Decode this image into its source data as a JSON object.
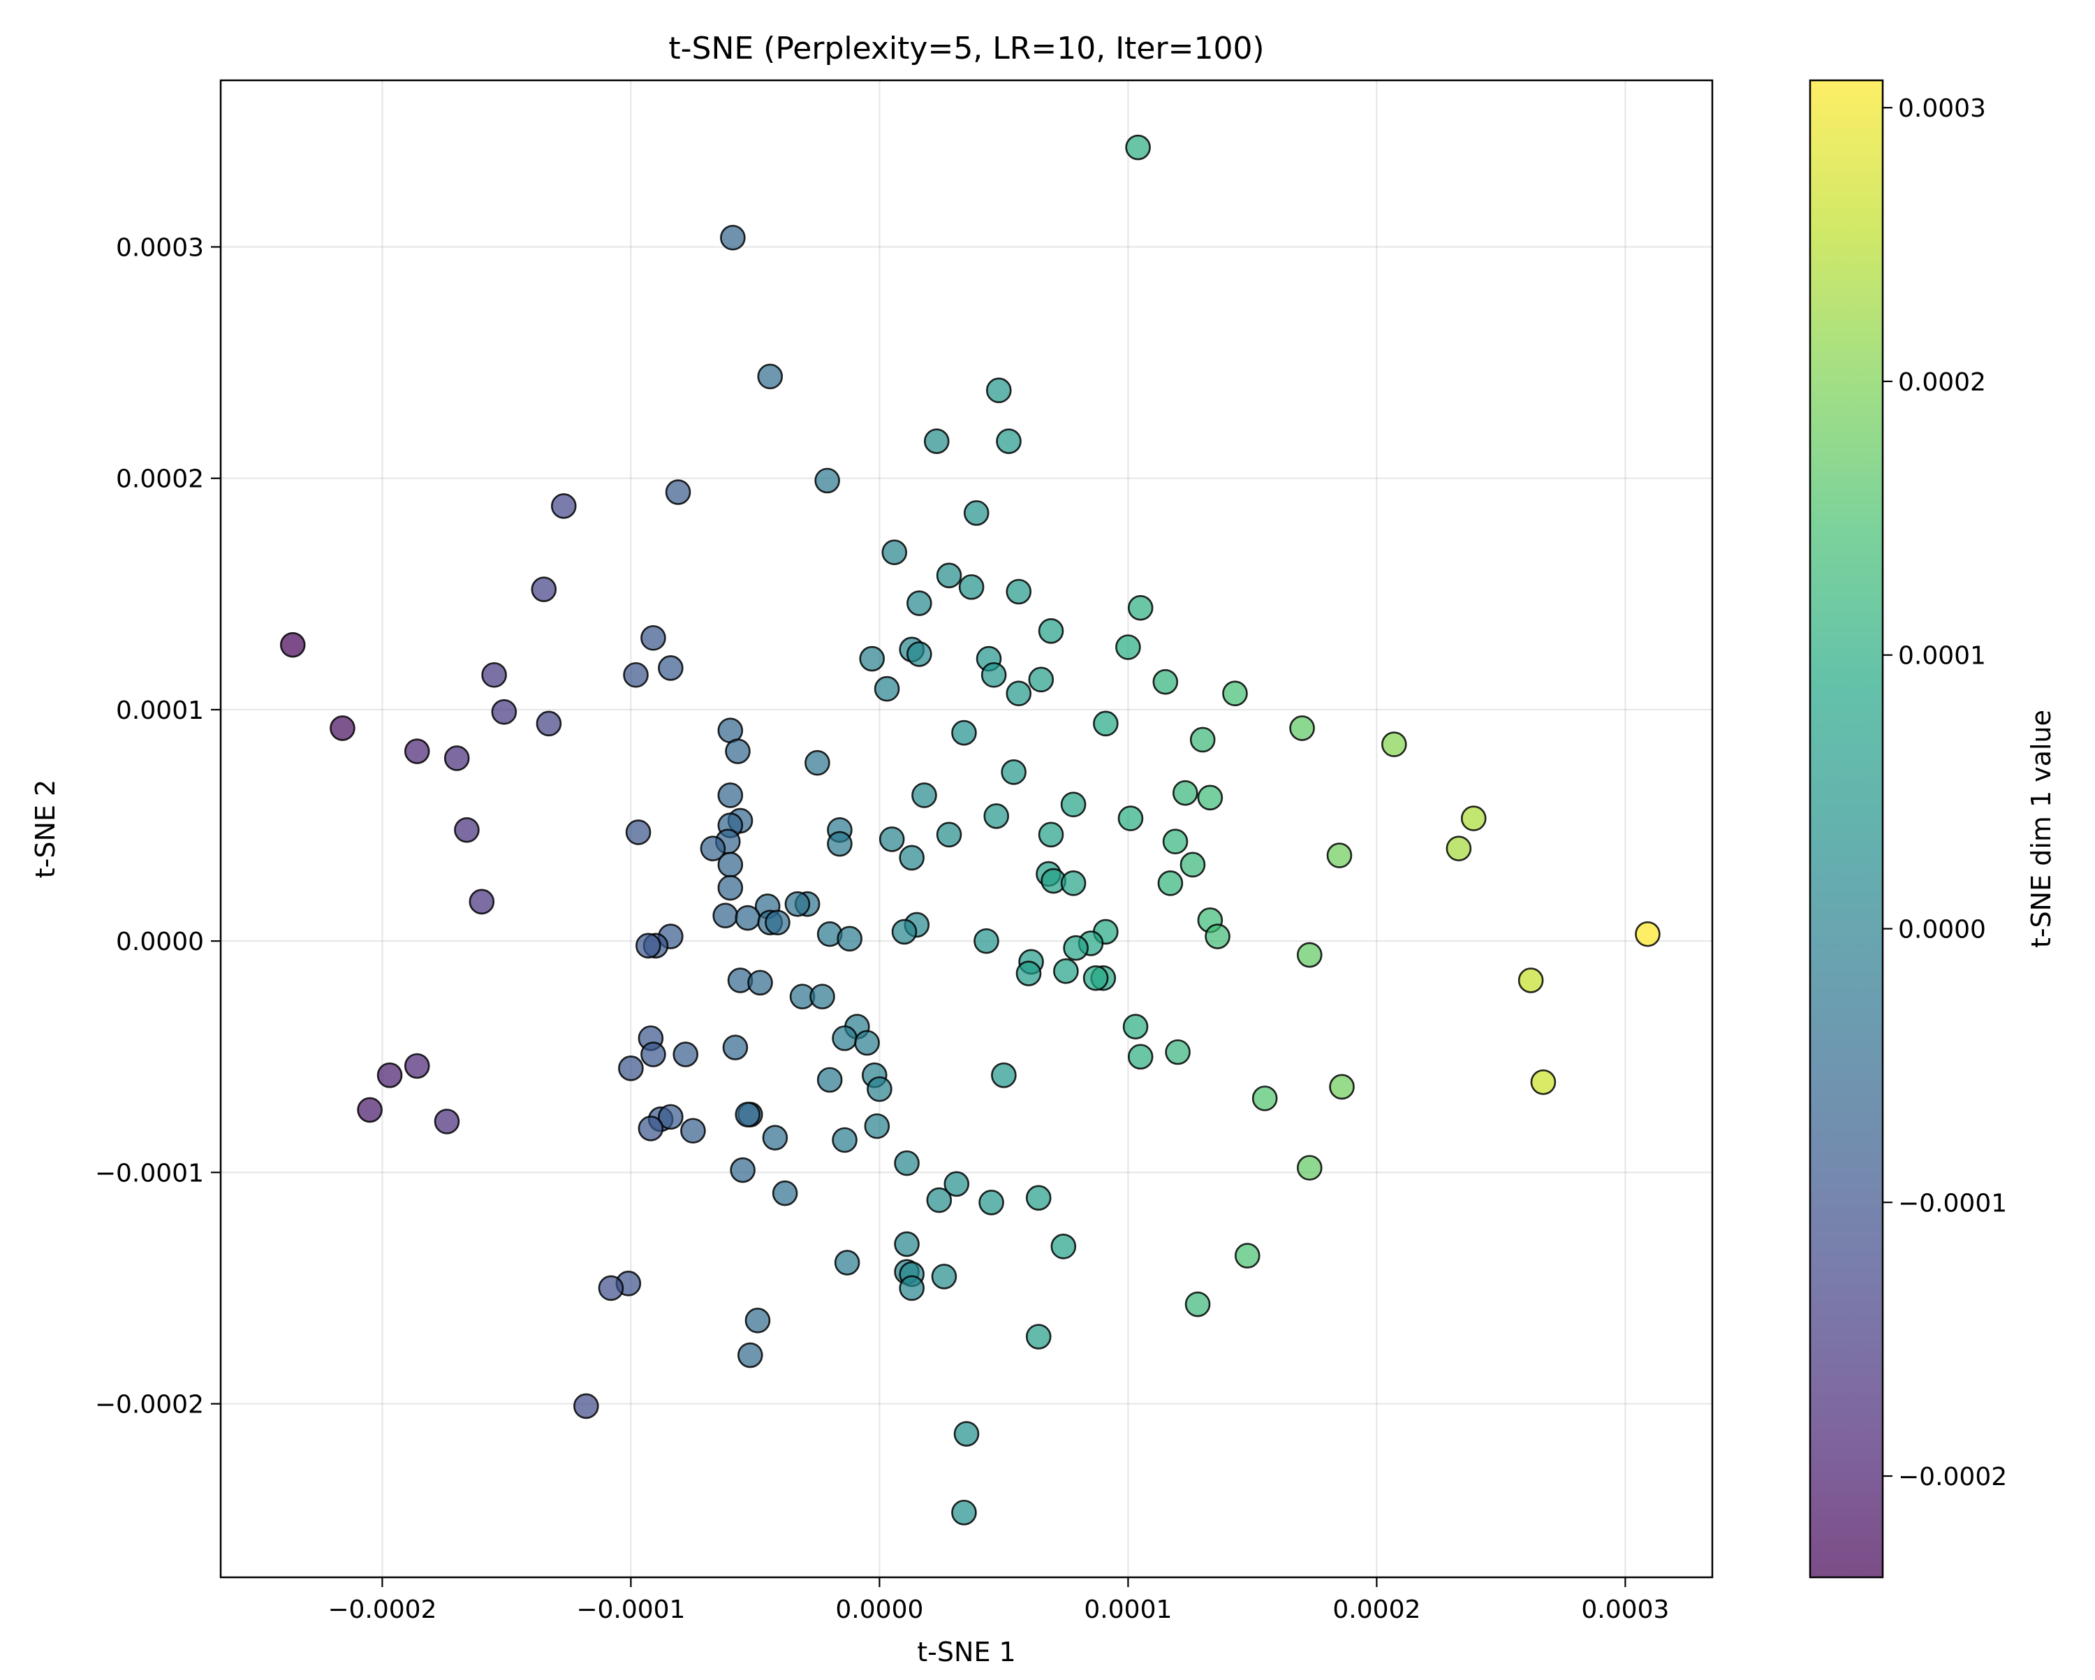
{
  "chart_data": {
    "type": "scatter",
    "title": "t-SNE (Perplexity=5, LR=10, Iter=100)",
    "xlabel": "t-SNE 1",
    "ylabel": "t-SNE 2",
    "xlim": [
      -0.000265,
      0.000335
    ],
    "ylim": [
      -0.000275,
      0.000372
    ],
    "grid": true,
    "x_ticks": [
      {
        "value": -0.0002,
        "label": "−0.0002"
      },
      {
        "value": -0.0001,
        "label": "−0.0001"
      },
      {
        "value": 0.0,
        "label": "0.0000"
      },
      {
        "value": 0.0001,
        "label": "0.0001"
      },
      {
        "value": 0.0002,
        "label": "0.0002"
      },
      {
        "value": 0.0003,
        "label": "0.0003"
      }
    ],
    "y_ticks": [
      {
        "value": -0.0002,
        "label": "−0.0002"
      },
      {
        "value": -0.0001,
        "label": "−0.0001"
      },
      {
        "value": 0.0,
        "label": "0.0000"
      },
      {
        "value": 0.0001,
        "label": "0.0001"
      },
      {
        "value": 0.0002,
        "label": "0.0002"
      },
      {
        "value": 0.0003,
        "label": "0.0003"
      }
    ],
    "colorbar": {
      "label": "t-SNE dim 1 value",
      "colormap": "viridis",
      "alpha": 0.7,
      "range": [
        -0.000237,
        0.00031
      ],
      "ticks": [
        {
          "value": -0.0002,
          "label": "−0.0002"
        },
        {
          "value": -0.0001,
          "label": "−0.0001"
        },
        {
          "value": 0.0,
          "label": "0.0000"
        },
        {
          "value": 0.0001,
          "label": "0.0001"
        },
        {
          "value": 0.0002,
          "label": "0.0002"
        },
        {
          "value": 0.0003,
          "label": "0.0003"
        }
      ]
    },
    "marker_edge_color": "#000000",
    "points": [
      {
        "x": 0.000104,
        "y": 0.000343
      },
      {
        "x": -5.9e-05,
        "y": 0.000304
      },
      {
        "x": -4.4e-05,
        "y": 0.000244
      },
      {
        "x": 4.8e-05,
        "y": 0.000238
      },
      {
        "x": 2.3e-05,
        "y": 0.000216
      },
      {
        "x": 5.2e-05,
        "y": 0.000216
      },
      {
        "x": -2.1e-05,
        "y": 0.000199
      },
      {
        "x": -8.1e-05,
        "y": 0.000194
      },
      {
        "x": -0.000127,
        "y": 0.000188
      },
      {
        "x": 3.9e-05,
        "y": 0.000185
      },
      {
        "x": 6e-06,
        "y": 0.000168
      },
      {
        "x": 2.8e-05,
        "y": 0.000158
      },
      {
        "x": 3.7e-05,
        "y": 0.000153
      },
      {
        "x": -0.000135,
        "y": 0.000152
      },
      {
        "x": 5.6e-05,
        "y": 0.000151
      },
      {
        "x": 1.6e-05,
        "y": 0.000146
      },
      {
        "x": 0.000105,
        "y": 0.000144
      },
      {
        "x": 6.9e-05,
        "y": 0.000134
      },
      {
        "x": -9.1e-05,
        "y": 0.000131
      },
      {
        "x": -0.000236,
        "y": 0.000128
      },
      {
        "x": 0.0001,
        "y": 0.000127
      },
      {
        "x": 1.3e-05,
        "y": 0.000126
      },
      {
        "x": 1.6e-05,
        "y": 0.000124
      },
      {
        "x": 4.4e-05,
        "y": 0.000122
      },
      {
        "x": -3e-06,
        "y": 0.000122
      },
      {
        "x": -8.4e-05,
        "y": 0.000118
      },
      {
        "x": -0.000155,
        "y": 0.000115
      },
      {
        "x": 4.6e-05,
        "y": 0.000115
      },
      {
        "x": -9.8e-05,
        "y": 0.000115
      },
      {
        "x": 6.5e-05,
        "y": 0.000113
      },
      {
        "x": 0.000115,
        "y": 0.000112
      },
      {
        "x": 3e-06,
        "y": 0.000109
      },
      {
        "x": 0.000143,
        "y": 0.000107
      },
      {
        "x": 5.6e-05,
        "y": 0.000107
      },
      {
        "x": -0.000151,
        "y": 9.9e-05
      },
      {
        "x": -0.000133,
        "y": 9.4e-05
      },
      {
        "x": 9.1e-05,
        "y": 9.4e-05
      },
      {
        "x": -0.000216,
        "y": 9.2e-05
      },
      {
        "x": 0.00017,
        "y": 9.2e-05
      },
      {
        "x": -6e-05,
        "y": 9.1e-05
      },
      {
        "x": 3.4e-05,
        "y": 9e-05
      },
      {
        "x": 0.00013,
        "y": 8.7e-05
      },
      {
        "x": 0.000207,
        "y": 8.5e-05
      },
      {
        "x": -5.7e-05,
        "y": 8.2e-05
      },
      {
        "x": -0.000186,
        "y": 8.2e-05
      },
      {
        "x": -0.00017,
        "y": 7.9e-05
      },
      {
        "x": -2.5e-05,
        "y": 7.7e-05
      },
      {
        "x": 5.4e-05,
        "y": 7.3e-05
      },
      {
        "x": 0.000123,
        "y": 6.4e-05
      },
      {
        "x": 1.8e-05,
        "y": 6.3e-05
      },
      {
        "x": -6e-05,
        "y": 6.3e-05
      },
      {
        "x": 0.000133,
        "y": 6.2e-05
      },
      {
        "x": 7.8e-05,
        "y": 5.9e-05
      },
      {
        "x": 4.7e-05,
        "y": 5.4e-05
      },
      {
        "x": 0.000101,
        "y": 5.3e-05
      },
      {
        "x": 0.000239,
        "y": 5.3e-05
      },
      {
        "x": -5.6e-05,
        "y": 5.2e-05
      },
      {
        "x": -6e-05,
        "y": 5e-05
      },
      {
        "x": -1.6e-05,
        "y": 4.8e-05
      },
      {
        "x": -0.000166,
        "y": 4.8e-05
      },
      {
        "x": -9.7e-05,
        "y": 4.7e-05
      },
      {
        "x": 6.9e-05,
        "y": 4.6e-05
      },
      {
        "x": 2.8e-05,
        "y": 4.6e-05
      },
      {
        "x": 5e-06,
        "y": 4.4e-05
      },
      {
        "x": 0.000119,
        "y": 4.3e-05
      },
      {
        "x": -6.1e-05,
        "y": 4.3e-05
      },
      {
        "x": -1.6e-05,
        "y": 4.2e-05
      },
      {
        "x": 0.000233,
        "y": 4e-05
      },
      {
        "x": -6.7e-05,
        "y": 4e-05
      },
      {
        "x": 0.000185,
        "y": 3.7e-05
      },
      {
        "x": 1.3e-05,
        "y": 3.6e-05
      },
      {
        "x": -6e-05,
        "y": 3.3e-05
      },
      {
        "x": 0.000126,
        "y": 3.3e-05
      },
      {
        "x": 6.8e-05,
        "y": 2.9e-05
      },
      {
        "x": 7e-05,
        "y": 2.6e-05
      },
      {
        "x": 0.000117,
        "y": 2.5e-05
      },
      {
        "x": 7.8e-05,
        "y": 2.5e-05
      },
      {
        "x": -6e-05,
        "y": 2.3e-05
      },
      {
        "x": -0.00016,
        "y": 1.7e-05
      },
      {
        "x": -2.9e-05,
        "y": 1.6e-05
      },
      {
        "x": -3.3e-05,
        "y": 1.6e-05
      },
      {
        "x": -4.5e-05,
        "y": 1.5e-05
      },
      {
        "x": -6.2e-05,
        "y": 1.1e-05
      },
      {
        "x": -5.3e-05,
        "y": 1e-05
      },
      {
        "x": 0.000133,
        "y": 9e-06
      },
      {
        "x": -4.4e-05,
        "y": 8e-06
      },
      {
        "x": -4.1e-05,
        "y": 8e-06
      },
      {
        "x": 1.5e-05,
        "y": 7e-06
      },
      {
        "x": 1e-05,
        "y": 4e-06
      },
      {
        "x": 9.1e-05,
        "y": 4e-06
      },
      {
        "x": -2e-05,
        "y": 3e-06
      },
      {
        "x": 0.000309,
        "y": 3e-06
      },
      {
        "x": -8.4e-05,
        "y": 2e-06
      },
      {
        "x": 0.000136,
        "y": 2e-06
      },
      {
        "x": -1.2e-05,
        "y": 1e-06
      },
      {
        "x": 4.3e-05,
        "y": 0.0
      },
      {
        "x": 8.5e-05,
        "y": -1e-06
      },
      {
        "x": -9e-05,
        "y": -2e-06
      },
      {
        "x": -9.3e-05,
        "y": -2e-06
      },
      {
        "x": 7.9e-05,
        "y": -3e-06
      },
      {
        "x": 0.000173,
        "y": -6e-06
      },
      {
        "x": 6.1e-05,
        "y": -9e-06
      },
      {
        "x": 7.5e-05,
        "y": -1.3e-05
      },
      {
        "x": 6e-05,
        "y": -1.4e-05
      },
      {
        "x": 9e-05,
        "y": -1.6e-05
      },
      {
        "x": 8.7e-05,
        "y": -1.6e-05
      },
      {
        "x": 0.000262,
        "y": -1.7e-05
      },
      {
        "x": -5.6e-05,
        "y": -1.7e-05
      },
      {
        "x": -4.8e-05,
        "y": -1.8e-05
      },
      {
        "x": -3.1e-05,
        "y": -2.4e-05
      },
      {
        "x": -2.3e-05,
        "y": -2.4e-05
      },
      {
        "x": -9e-06,
        "y": -3.7e-05
      },
      {
        "x": 0.000103,
        "y": -3.7e-05
      },
      {
        "x": -1.4e-05,
        "y": -4.2e-05
      },
      {
        "x": -5e-06,
        "y": -4.4e-05
      },
      {
        "x": -9.2e-05,
        "y": -4.2e-05
      },
      {
        "x": -5.8e-05,
        "y": -4.6e-05
      },
      {
        "x": 0.00012,
        "y": -4.8e-05
      },
      {
        "x": -7.8e-05,
        "y": -4.9e-05
      },
      {
        "x": -9.1e-05,
        "y": -4.9e-05
      },
      {
        "x": 0.000105,
        "y": -5e-05
      },
      {
        "x": -0.0001,
        "y": -5.5e-05
      },
      {
        "x": -0.000186,
        "y": -5.4e-05
      },
      {
        "x": 5e-05,
        "y": -5.8e-05
      },
      {
        "x": -0.000197,
        "y": -5.8e-05
      },
      {
        "x": -2e-06,
        "y": -5.8e-05
      },
      {
        "x": -2e-05,
        "y": -6e-05
      },
      {
        "x": 0.000267,
        "y": -6.1e-05
      },
      {
        "x": 0.000186,
        "y": -6.3e-05
      },
      {
        "x": 0.0,
        "y": -6.4e-05
      },
      {
        "x": 0.000155,
        "y": -6.8e-05
      },
      {
        "x": -0.000205,
        "y": -7.3e-05
      },
      {
        "x": -5.2e-05,
        "y": -7.5e-05
      },
      {
        "x": -5.3e-05,
        "y": -7.5e-05
      },
      {
        "x": -8.8e-05,
        "y": -7.7e-05
      },
      {
        "x": -8.4e-05,
        "y": -7.6e-05
      },
      {
        "x": -0.000174,
        "y": -7.8e-05
      },
      {
        "x": -9.2e-05,
        "y": -8.1e-05
      },
      {
        "x": -7.5e-05,
        "y": -8.2e-05
      },
      {
        "x": -1e-06,
        "y": -8e-05
      },
      {
        "x": -4.2e-05,
        "y": -8.5e-05
      },
      {
        "x": -1.4e-05,
        "y": -8.6e-05
      },
      {
        "x": 1.1e-05,
        "y": -9.6e-05
      },
      {
        "x": 0.000173,
        "y": -9.8e-05
      },
      {
        "x": -5.5e-05,
        "y": -9.9e-05
      },
      {
        "x": 3.1e-05,
        "y": -0.000105
      },
      {
        "x": -3.8e-05,
        "y": -0.000109
      },
      {
        "x": 6.4e-05,
        "y": -0.000111
      },
      {
        "x": 2.4e-05,
        "y": -0.000112
      },
      {
        "x": 4.5e-05,
        "y": -0.000113
      },
      {
        "x": 7.4e-05,
        "y": -0.000132
      },
      {
        "x": 1.1e-05,
        "y": -0.000131
      },
      {
        "x": 0.000148,
        "y": -0.000136
      },
      {
        "x": -1.3e-05,
        "y": -0.000139
      },
      {
        "x": 1.1e-05,
        "y": -0.000143
      },
      {
        "x": 1.3e-05,
        "y": -0.000144
      },
      {
        "x": 2.6e-05,
        "y": -0.000145
      },
      {
        "x": -0.000101,
        "y": -0.000148
      },
      {
        "x": -0.000108,
        "y": -0.00015
      },
      {
        "x": 1.3e-05,
        "y": -0.00015
      },
      {
        "x": 0.000128,
        "y": -0.000157
      },
      {
        "x": -4.9e-05,
        "y": -0.000164
      },
      {
        "x": 6.4e-05,
        "y": -0.000171
      },
      {
        "x": -5.2e-05,
        "y": -0.000179
      },
      {
        "x": -0.000118,
        "y": -0.000201
      },
      {
        "x": 3.5e-05,
        "y": -0.000213
      },
      {
        "x": 3.4e-05,
        "y": -0.000247
      }
    ]
  }
}
